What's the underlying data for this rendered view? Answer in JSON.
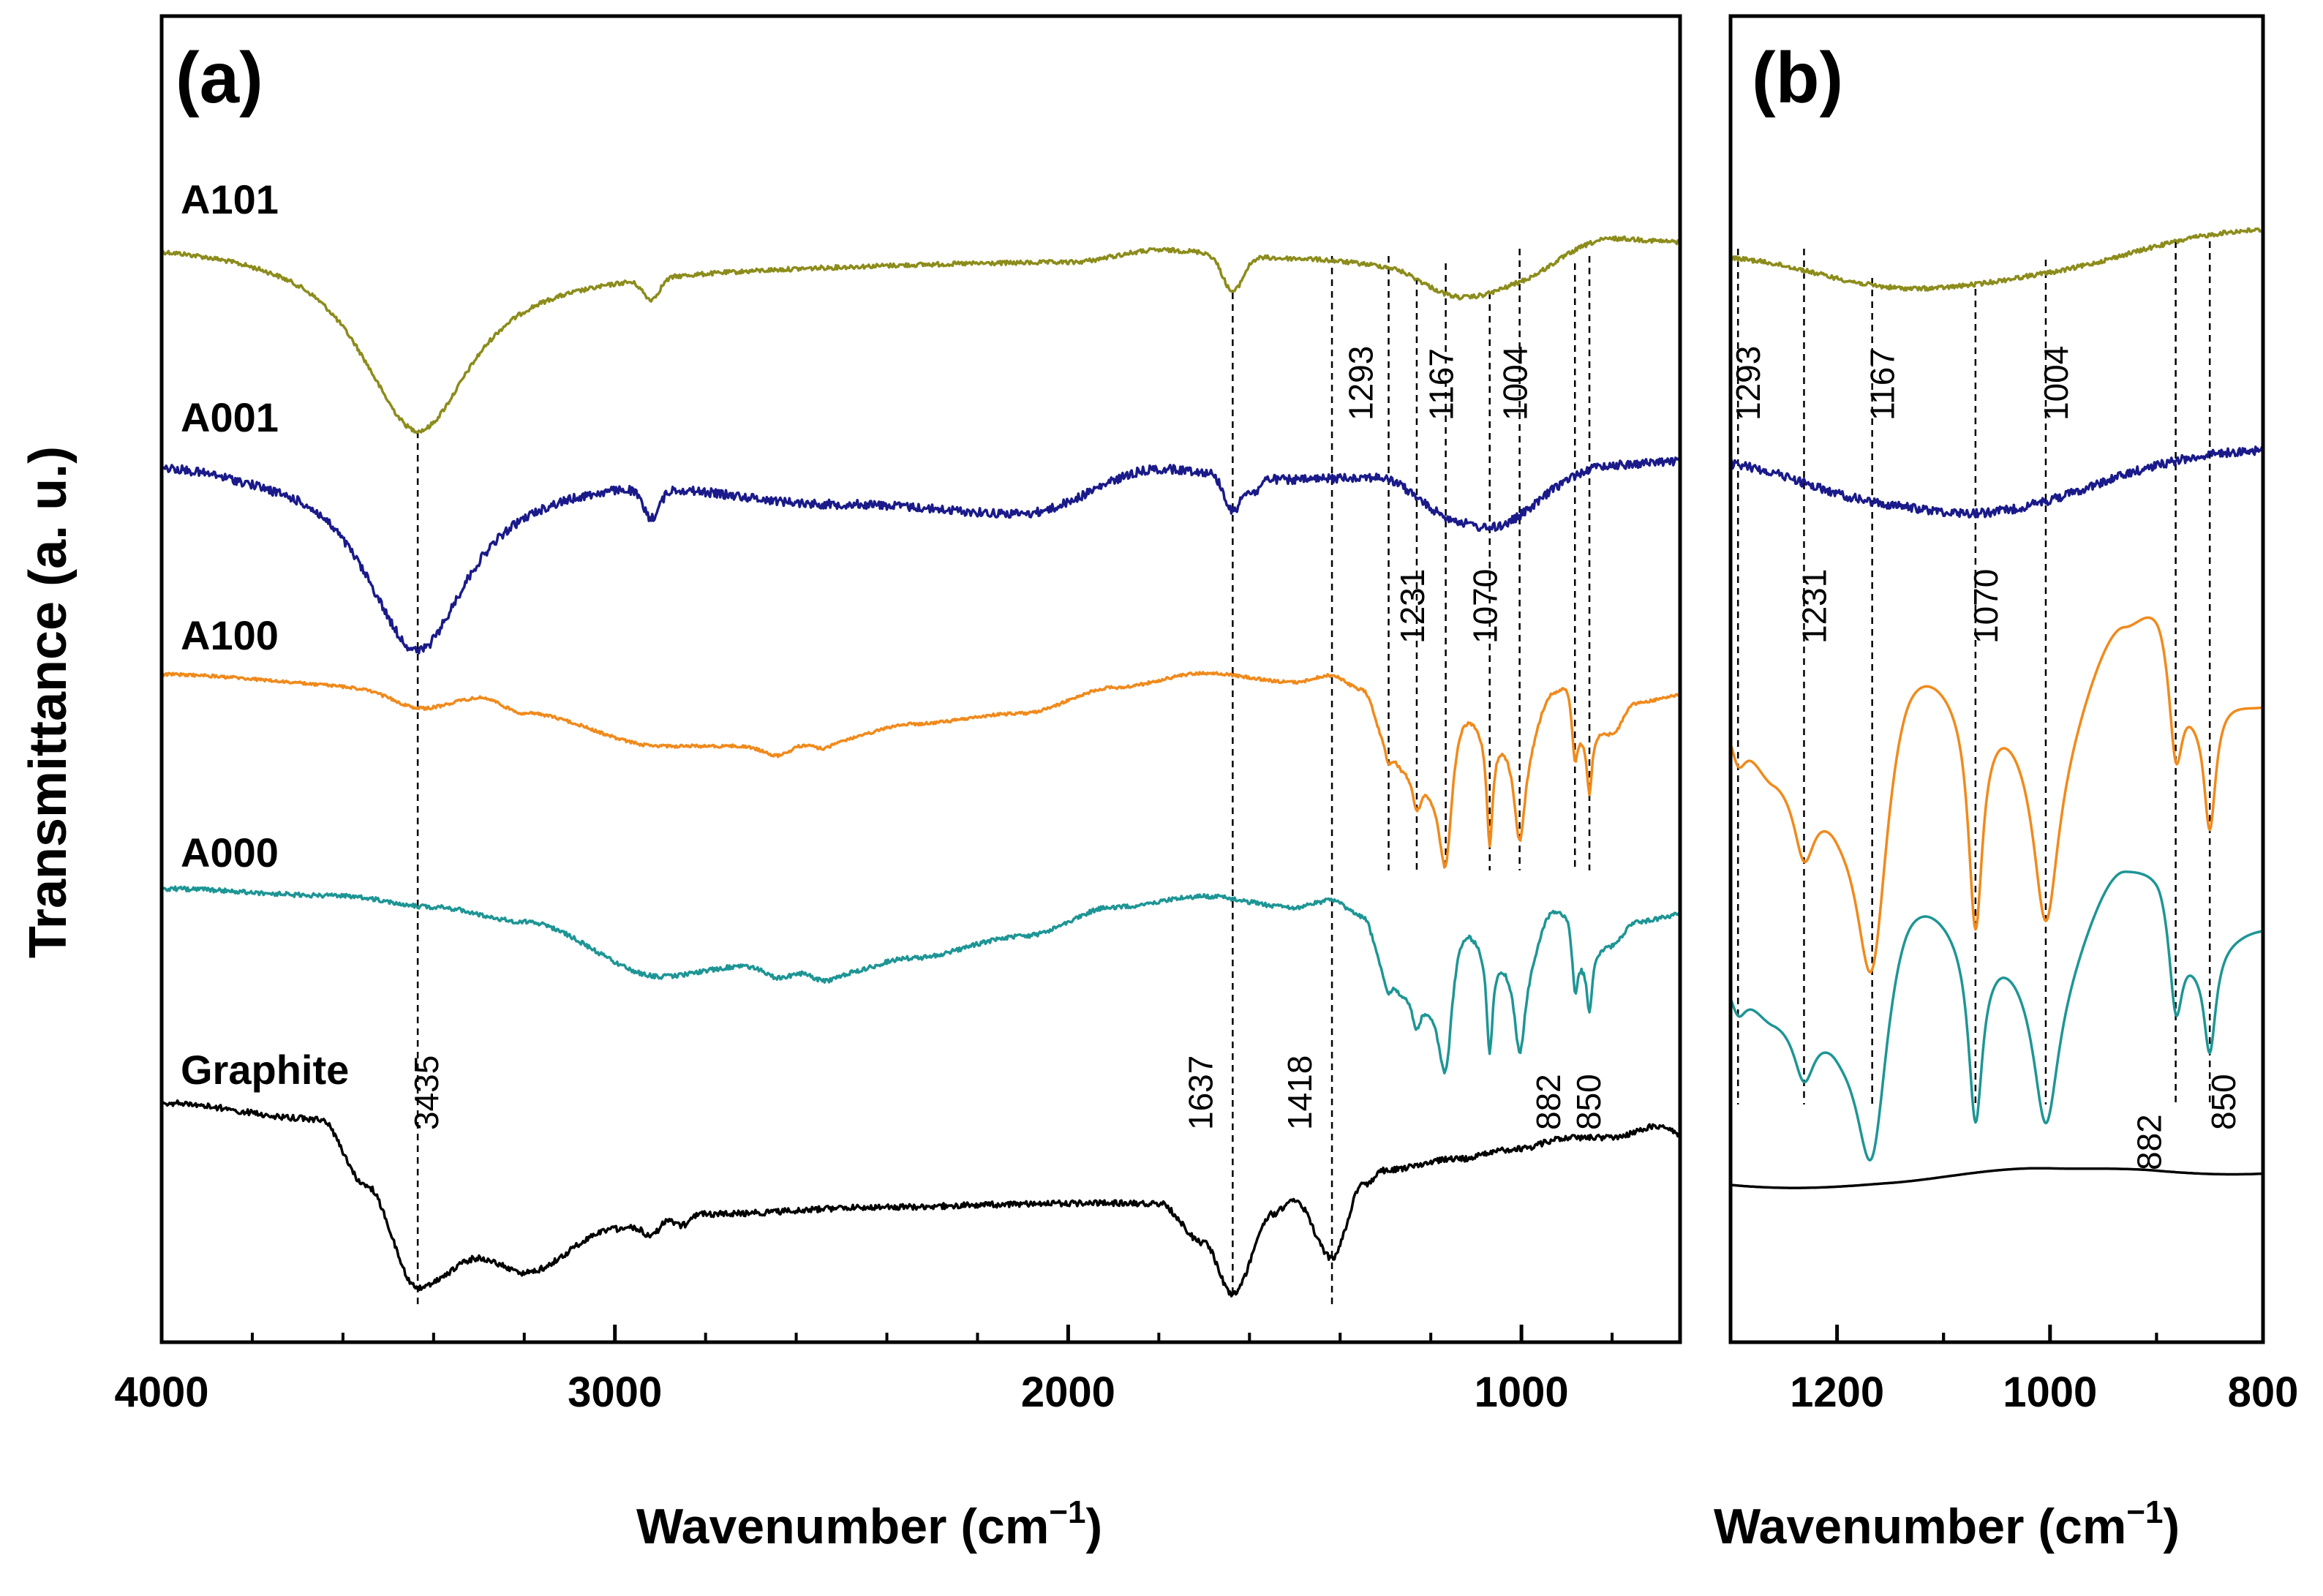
{
  "chart_data": [
    {
      "panel": "(a)",
      "type": "line",
      "xlabel": "Wavenumber (cm",
      "xlabel_sup": "−1",
      "xlabel_end": ")",
      "ylabel": "Transmittance (a. u.)",
      "xlim": [
        4000,
        650
      ],
      "x_reversed": true,
      "xticks": [
        4000,
        3000,
        2000,
        1000
      ],
      "series": [
        {
          "name": "A101",
          "color": "#8c8c1c"
        },
        {
          "name": "A001",
          "color": "#1a1a8a"
        },
        {
          "name": "A100",
          "color": "#f08a1c"
        },
        {
          "name": "A000",
          "color": "#1e9595"
        },
        {
          "name": "Graphite",
          "color": "#000000"
        }
      ],
      "reference_lines": [
        "3435",
        "1637",
        "1418",
        "1293",
        "1231",
        "1167",
        "1070",
        "1004",
        "882",
        "850"
      ]
    },
    {
      "panel": "(b)",
      "type": "line",
      "xlabel": "Wavenumber (cm",
      "xlabel_sup": "−1",
      "xlabel_end": ")",
      "xlim": [
        1300,
        800
      ],
      "x_reversed": true,
      "xticks": [
        1200,
        1000,
        800
      ],
      "reference_lines": [
        "1293",
        "1231",
        "1167",
        "1070",
        "1004",
        "882",
        "850"
      ]
    }
  ]
}
